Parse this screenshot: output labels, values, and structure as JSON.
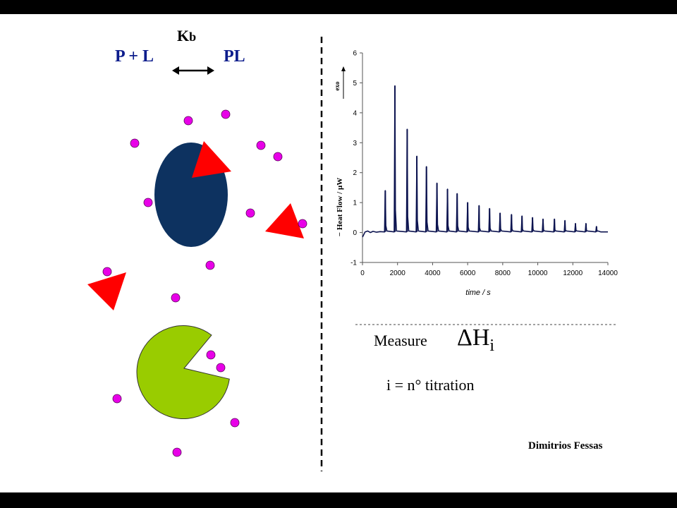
{
  "slide": {
    "equilibrium": {
      "left": "P + L",
      "right": "PL",
      "k_main": "K",
      "k_sub": "b"
    },
    "measure_label": "Measure",
    "delta_symbol": "ΔH",
    "delta_sub": "i",
    "titration_note": "i = n° titration",
    "author": "Dimitrios Fessas"
  },
  "colors": {
    "protein_blue": "#0d3260",
    "protein_green": "#99cc00",
    "ligand": "#e800e8",
    "triangle": "#ff0000",
    "title_blue": "#0c1c8c",
    "trace": "#0d1450"
  },
  "chart_data": {
    "type": "line",
    "xlabel": "time / s",
    "ylabel": "− Heat Flow / μW",
    "exo_label": "exo",
    "xlim": [
      0,
      14000
    ],
    "ylim": [
      -1,
      6
    ],
    "xticks": [
      "0",
      "2000",
      "4000",
      "6000",
      "8000",
      "10000",
      "12000",
      "14000"
    ],
    "yticks": [
      "-1",
      "0",
      "1",
      "2",
      "3",
      "4",
      "5",
      "6"
    ],
    "baseline": 0.02,
    "peaks": [
      {
        "t": 1300,
        "h": 1.4
      },
      {
        "t": 1850,
        "h": 4.9
      },
      {
        "t": 2550,
        "h": 3.45
      },
      {
        "t": 3100,
        "h": 2.55
      },
      {
        "t": 3650,
        "h": 2.2
      },
      {
        "t": 4250,
        "h": 1.65
      },
      {
        "t": 4850,
        "h": 1.45
      },
      {
        "t": 5400,
        "h": 1.3
      },
      {
        "t": 6000,
        "h": 1.0
      },
      {
        "t": 6650,
        "h": 0.9
      },
      {
        "t": 7250,
        "h": 0.8
      },
      {
        "t": 7850,
        "h": 0.65
      },
      {
        "t": 8500,
        "h": 0.6
      },
      {
        "t": 9100,
        "h": 0.55
      },
      {
        "t": 9700,
        "h": 0.5
      },
      {
        "t": 10300,
        "h": 0.45
      },
      {
        "t": 10950,
        "h": 0.45
      },
      {
        "t": 11550,
        "h": 0.4
      },
      {
        "t": 12150,
        "h": 0.3
      },
      {
        "t": 12750,
        "h": 0.3
      },
      {
        "t": 13350,
        "h": 0.2
      }
    ],
    "grid": false,
    "legend": "none"
  }
}
